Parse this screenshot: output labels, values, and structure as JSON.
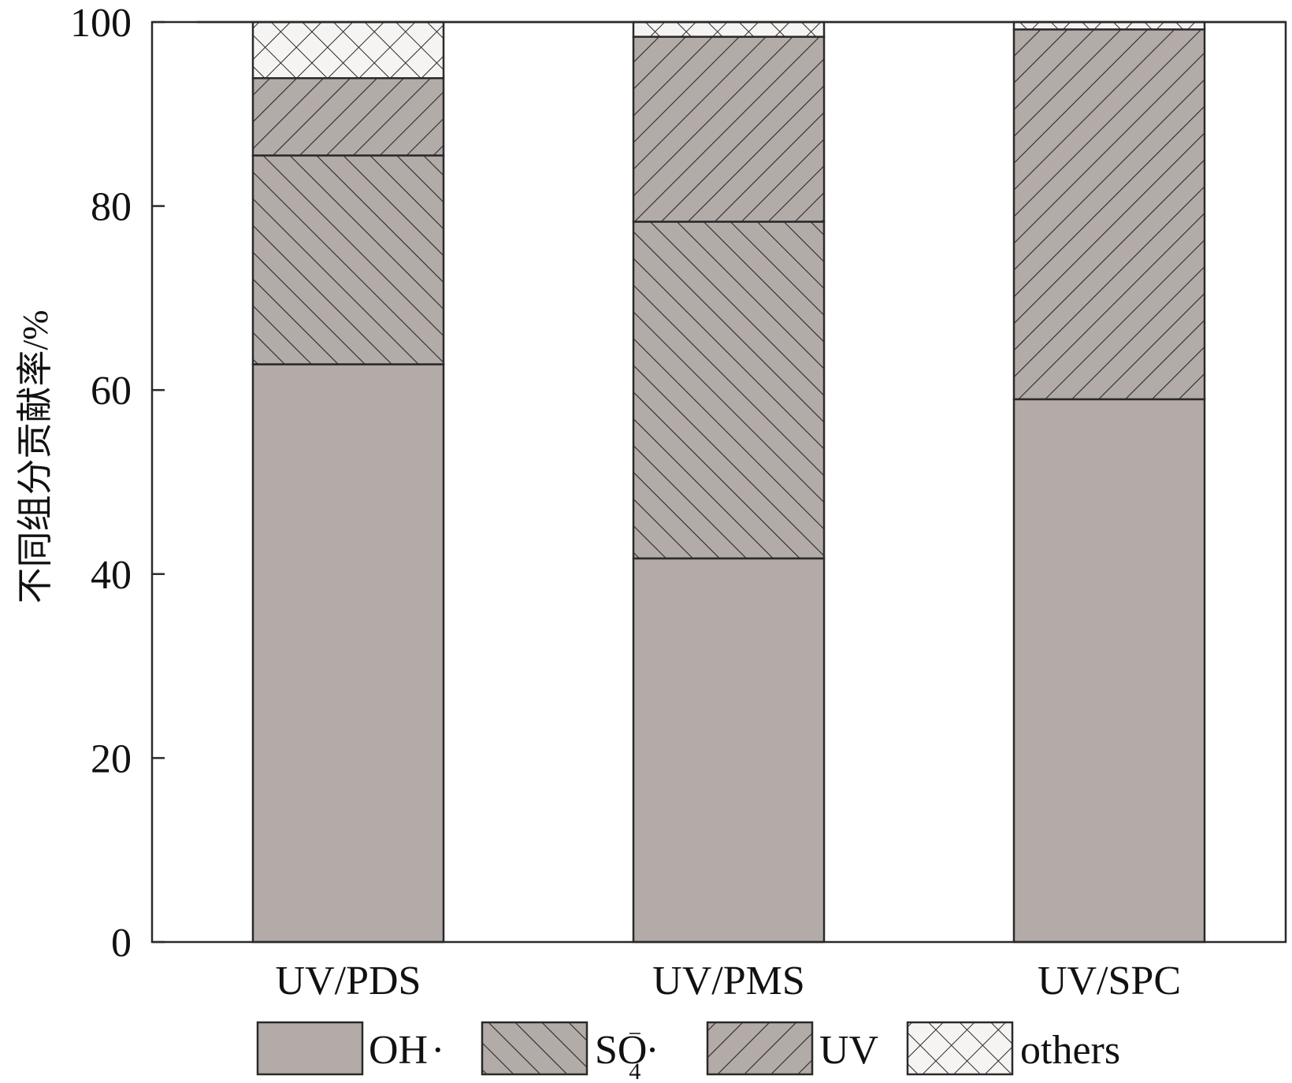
{
  "chart_data": {
    "type": "bar",
    "stacked": true,
    "categories": [
      "UV/PDS",
      "UV/PMS",
      "UV/SPC"
    ],
    "series": [
      {
        "name": "OH·",
        "pattern": "solid",
        "values": [
          62.8,
          41.7,
          59.0
        ]
      },
      {
        "name": "SO4−·",
        "pattern": "forward-hatch",
        "values": [
          22.7,
          36.6,
          0
        ]
      },
      {
        "name": "UV",
        "pattern": "backward-hatch",
        "values": [
          8.4,
          20.1,
          40.2
        ]
      },
      {
        "name": "others",
        "pattern": "cross-hatch",
        "values": [
          6.1,
          1.6,
          0.8
        ]
      }
    ],
    "ylabel": "不同组分贡献率/%",
    "xlabel": "",
    "ylim": [
      0,
      100
    ],
    "yticks": [
      0,
      20,
      40,
      60,
      80,
      100
    ],
    "legend_position": "bottom",
    "colors": {
      "bar_fill": "#b3aba8",
      "others_fill": "#f6f4f2",
      "stroke": "#2a2a2a",
      "hatch": "#2a2a2a"
    }
  },
  "legend": {
    "oh_label": "OH",
    "oh_suffix": "·",
    "so4_main": "SO",
    "so4_sup": "−",
    "so4_sub": "4",
    "so4_suffix": "·",
    "uv_label": "UV",
    "others_label": "others"
  }
}
